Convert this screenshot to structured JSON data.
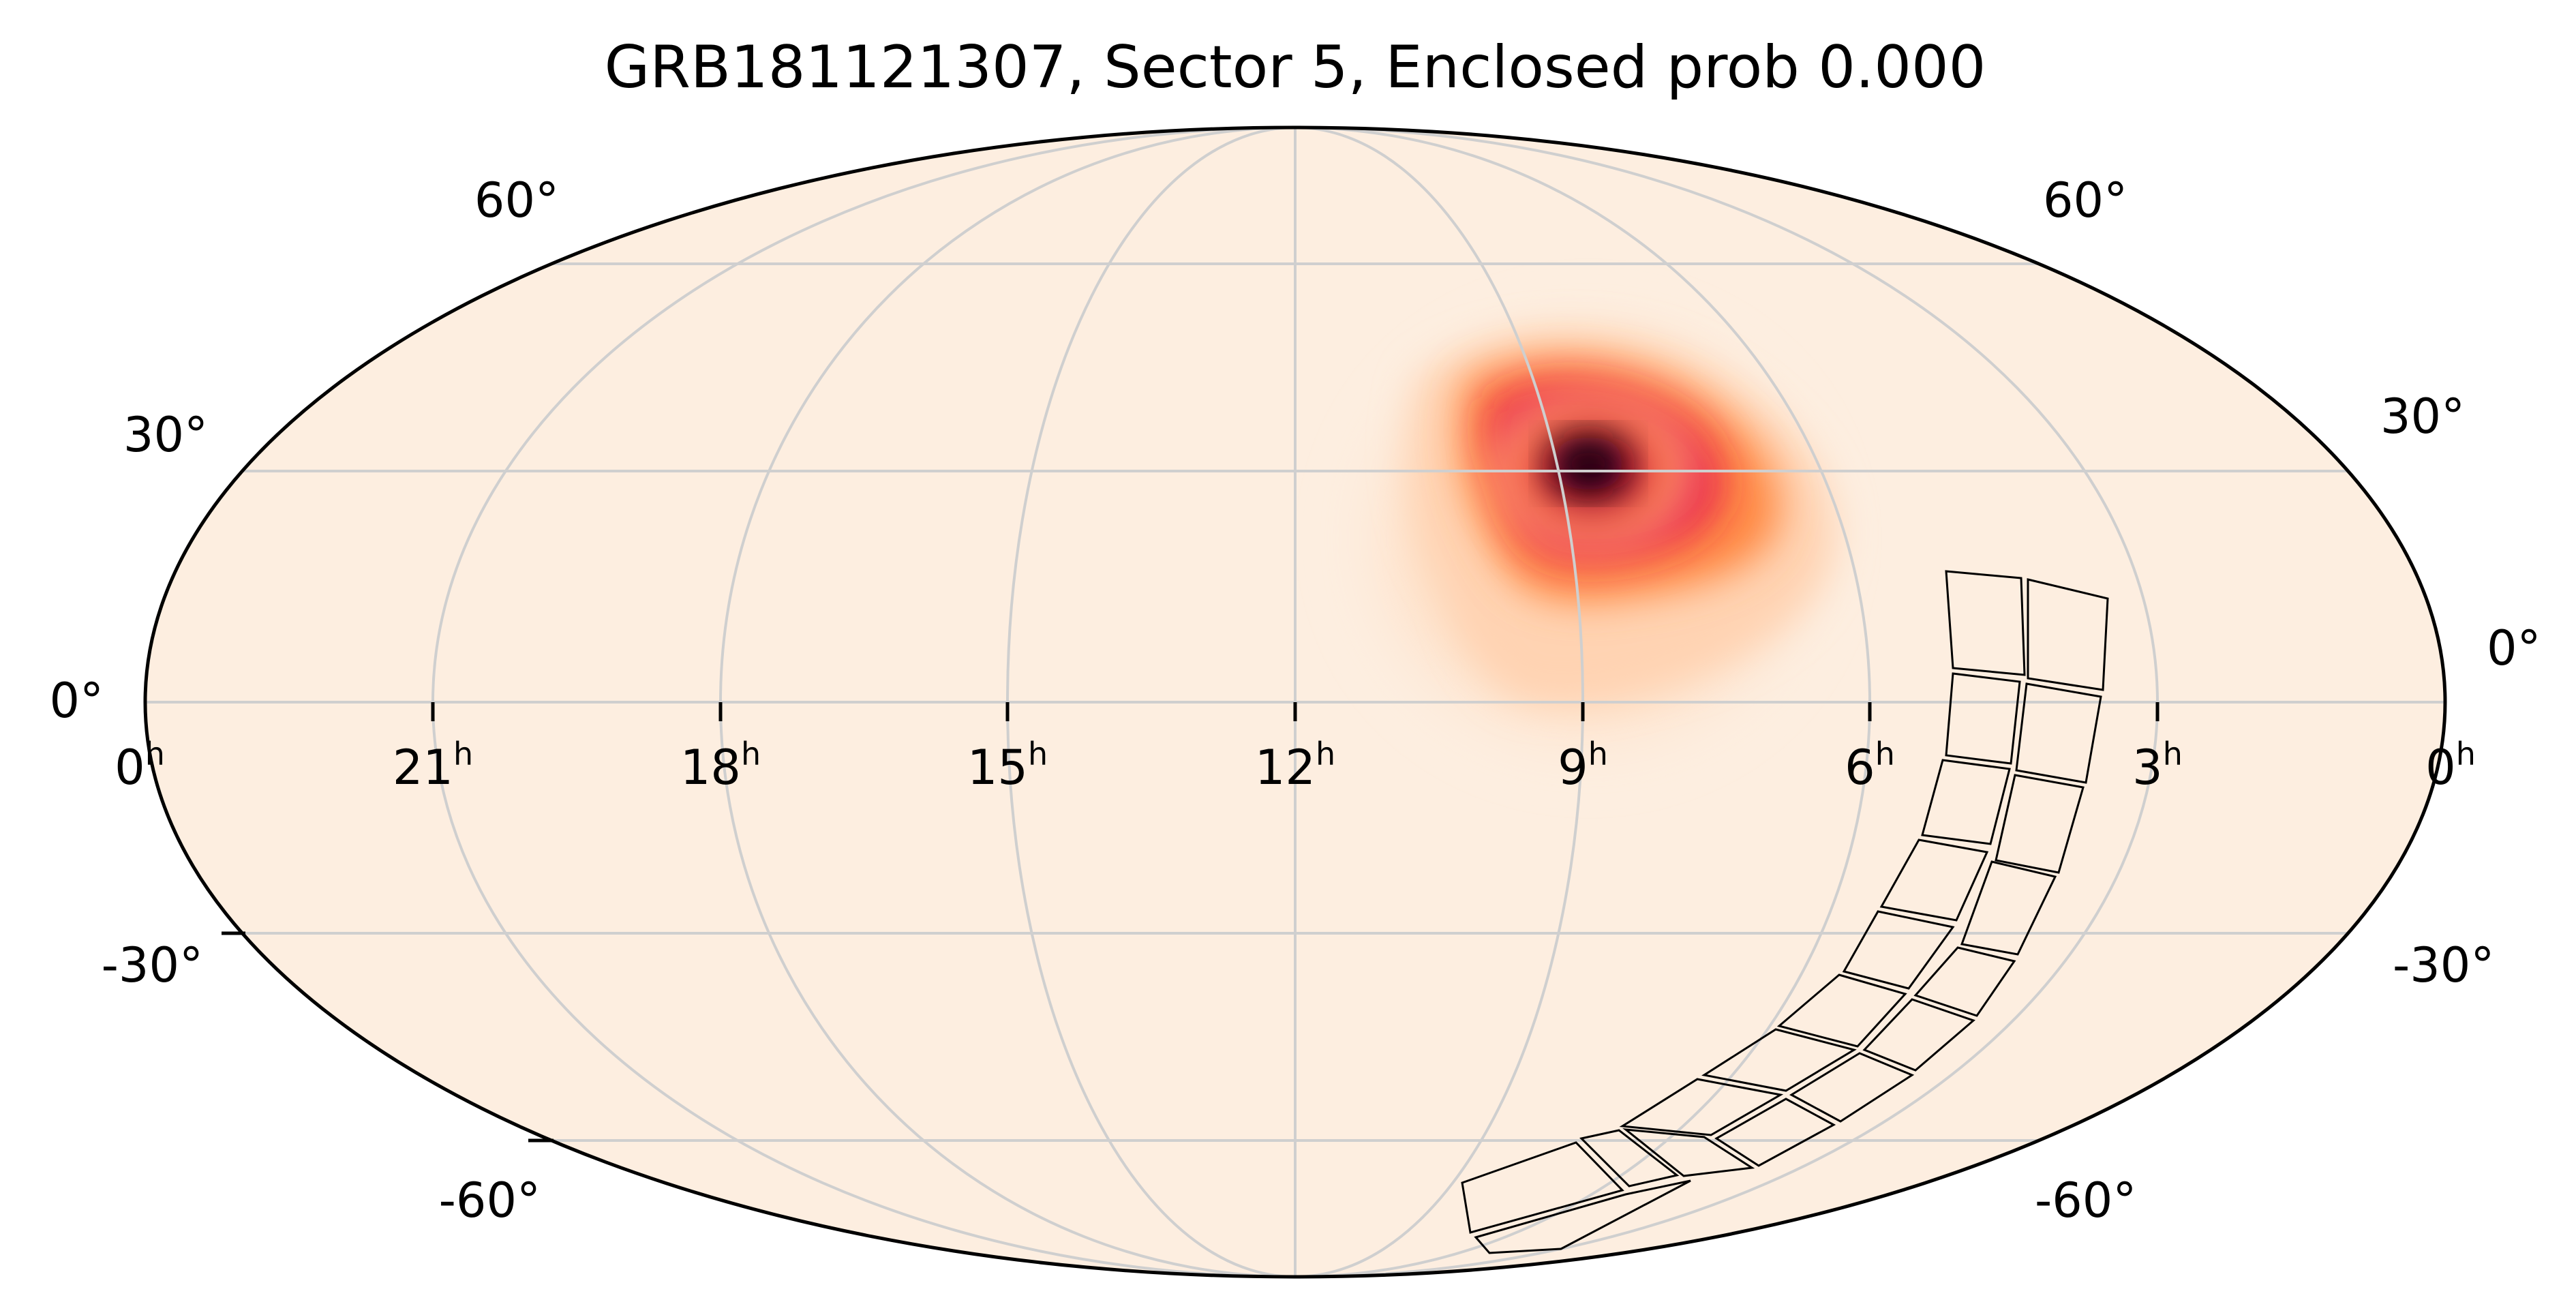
{
  "title": "GRB181121307, Sector 5, Enclosed prob 0.000",
  "chart_data": {
    "type": "heatmap",
    "projection": "mollweide",
    "title": "GRB181121307, Sector 5, Enclosed prob 0.000",
    "ra_tick_labels": [
      {
        "ra_hours": 0,
        "label": "0",
        "sup": "h",
        "side": "left"
      },
      {
        "ra_hours": 21,
        "label": "21",
        "sup": "h"
      },
      {
        "ra_hours": 18,
        "label": "18",
        "sup": "h"
      },
      {
        "ra_hours": 15,
        "label": "15",
        "sup": "h"
      },
      {
        "ra_hours": 12,
        "label": "12",
        "sup": "h"
      },
      {
        "ra_hours": 9,
        "label": "9",
        "sup": "h"
      },
      {
        "ra_hours": 6,
        "label": "6",
        "sup": "h"
      },
      {
        "ra_hours": 3,
        "label": "3",
        "sup": "h"
      },
      {
        "ra_hours": 0,
        "label": "0",
        "sup": "h",
        "side": "right"
      }
    ],
    "dec_tick_labels": [
      {
        "dec": 60,
        "label": "60°"
      },
      {
        "dec": 30,
        "label": "30°"
      },
      {
        "dec": 0,
        "label": "0°"
      },
      {
        "dec": -30,
        "label": "-30°"
      },
      {
        "dec": -60,
        "label": "-60°"
      }
    ],
    "grid": true,
    "background_color": "#fdeee0",
    "colormap": "hot_r",
    "probability_peak": {
      "ra_hours": 9.0,
      "dec_deg": 26
    },
    "footprint": {
      "label_visible": false,
      "note_none": true
    }
  }
}
